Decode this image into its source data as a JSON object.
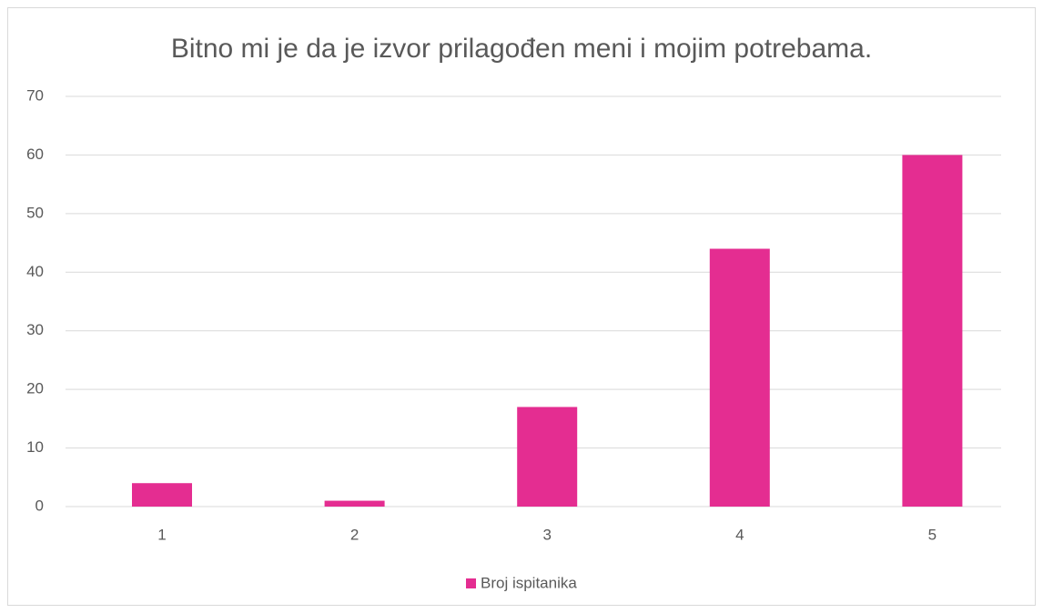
{
  "chart_data": {
    "type": "bar",
    "title": "Bitno mi je da je izvor prilagođen meni i mojim potrebama.",
    "categories": [
      "1",
      "2",
      "3",
      "4",
      "5"
    ],
    "series": [
      {
        "name": "Broj ispitanika",
        "color": "#e42d91",
        "values": [
          4,
          1,
          17,
          44,
          60
        ]
      }
    ],
    "ylim": [
      0,
      70
    ],
    "yticks": [
      0,
      10,
      20,
      30,
      40,
      50,
      60,
      70
    ],
    "grid": true,
    "legend": "bottom"
  }
}
